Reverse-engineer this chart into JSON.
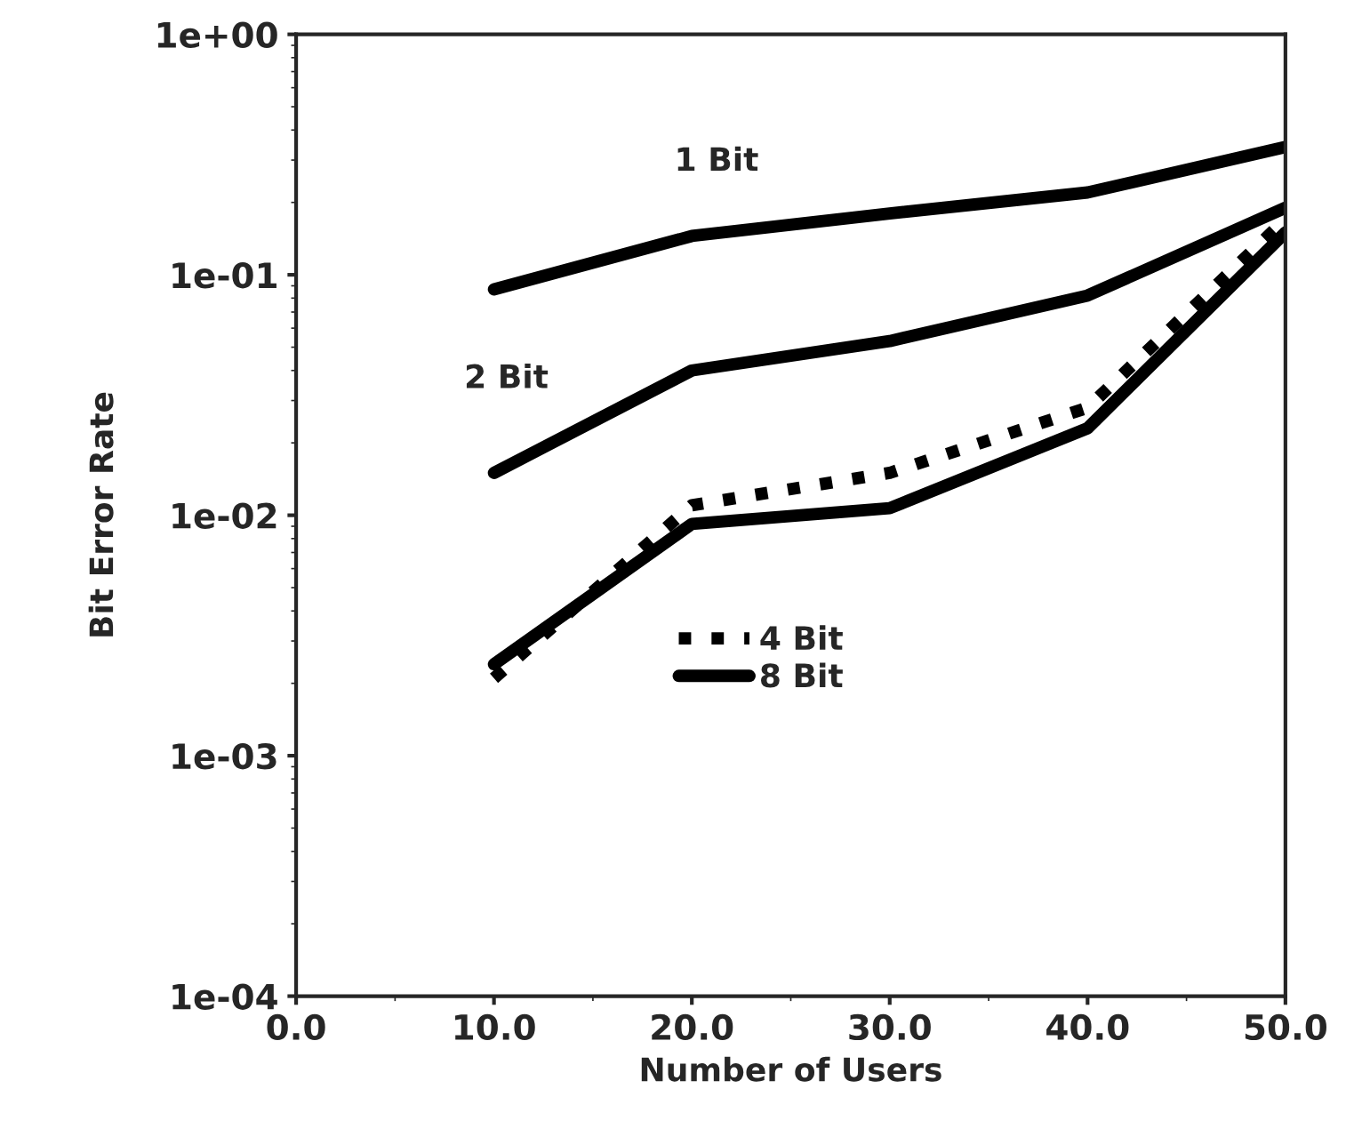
{
  "chart_data": {
    "type": "line",
    "xlabel": "Number of Users",
    "ylabel": "Bit Error Rate",
    "log": "y",
    "x": [
      10,
      20,
      30,
      40,
      50
    ],
    "series": [
      {
        "color": "#000000",
        "line_style": "solid",
        "values": [
          0.087,
          0.145,
          0.18,
          0.22,
          0.34
        ]
      },
      {
        "color": "#000000",
        "line_style": "solid",
        "values": [
          0.015,
          0.04,
          0.053,
          0.082,
          0.19
        ]
      },
      {
        "name": "4 Bit",
        "color": "#000000",
        "line_style": "dotted",
        "values": [
          0.0021,
          0.011,
          0.015,
          0.028,
          0.17
        ]
      },
      {
        "name": "8 Bit",
        "color": "#000000",
        "line_style": "solid",
        "values": [
          0.0024,
          0.0092,
          0.0107,
          0.023,
          0.15
        ]
      }
    ],
    "annotations": [
      "1 Bit",
      "2 Bit"
    ],
    "xlim": [
      0,
      50
    ],
    "xticks": [
      {
        "value": 0,
        "label": "0.0"
      },
      {
        "value": 10,
        "label": "10.0"
      },
      {
        "value": 20,
        "label": "20.0"
      },
      {
        "value": 30,
        "label": "30.0"
      },
      {
        "value": 40,
        "label": "40.0"
      },
      {
        "value": 50,
        "label": "50.0"
      }
    ],
    "ylim": [
      0.0001,
      1
    ],
    "yticks": [
      {
        "value": 0.0001,
        "label": "1e-04"
      },
      {
        "value": 0.001,
        "label": "1e-03"
      },
      {
        "value": 0.01,
        "label": "1e-02"
      },
      {
        "value": 0.1,
        "label": "1e-01"
      },
      {
        "value": 1,
        "label": "1e+00"
      }
    ],
    "grid": false,
    "legend": "center",
    "marker": "none"
  }
}
